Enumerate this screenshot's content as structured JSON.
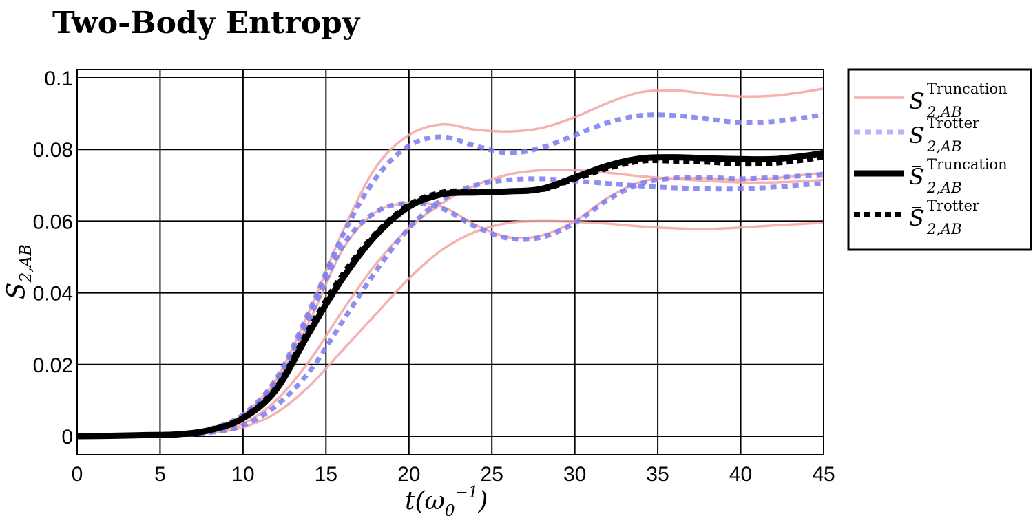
{
  "chart_data": {
    "type": "line",
    "title": "Two-Body Entropy",
    "xlabel": "t(ω0^-1)",
    "ylabel": "S2,AB",
    "xlim": [
      0,
      45
    ],
    "ylim": [
      0,
      0.1
    ],
    "xticks": [
      0,
      5,
      10,
      15,
      20,
      25,
      30,
      35,
      40,
      45
    ],
    "xtick_labels": [
      "0",
      "5",
      "10",
      "15",
      "20",
      "25",
      "30",
      "35",
      "40",
      "45"
    ],
    "yticks": [
      0,
      0.02,
      0.04,
      0.06,
      0.08,
      0.1
    ],
    "ytick_labels": [
      "0",
      "0.02",
      "0.04",
      "0.06",
      "0.08",
      "0.1"
    ],
    "grid": true,
    "legend_position": "outside-right",
    "legend": [
      {
        "base": "S",
        "bar": false,
        "sup": "Truncation",
        "sub": "2,AB",
        "style": "truncation"
      },
      {
        "base": "S",
        "bar": false,
        "sup": "Trotter",
        "sub": "2,AB",
        "style": "trotter"
      },
      {
        "base": "S",
        "bar": true,
        "sup": "Truncation",
        "sub": "2,AB",
        "style": "mean-truncation"
      },
      {
        "base": "S",
        "bar": true,
        "sup": "Trotter",
        "sub": "2,AB",
        "style": "mean-trotter"
      }
    ],
    "colors": {
      "truncation": "#f5a3a3",
      "trotter": "#7b7bf0",
      "mean": "#000000"
    },
    "x": [
      0,
      2,
      4,
      6,
      8,
      10,
      12,
      14,
      16,
      18,
      20,
      22,
      24,
      26,
      28,
      30,
      32,
      34,
      36,
      38,
      40,
      42,
      44,
      45
    ],
    "series": [
      {
        "group": "truncation",
        "values": [
          0,
          0.0001,
          0.0003,
          0.0006,
          0.002,
          0.006,
          0.016,
          0.035,
          0.057,
          0.075,
          0.084,
          0.087,
          0.0855,
          0.085,
          0.086,
          0.089,
          0.093,
          0.096,
          0.0965,
          0.0955,
          0.0948,
          0.095,
          0.0962,
          0.097
        ]
      },
      {
        "group": "truncation",
        "values": [
          0,
          0.0001,
          0.0003,
          0.0006,
          0.0018,
          0.0055,
          0.015,
          0.032,
          0.052,
          0.0625,
          0.065,
          0.064,
          0.059,
          0.0555,
          0.056,
          0.06,
          0.0665,
          0.071,
          0.072,
          0.072,
          0.0715,
          0.072,
          0.073,
          0.0735
        ]
      },
      {
        "group": "truncation",
        "values": [
          0,
          0.0001,
          0.0002,
          0.0004,
          0.0012,
          0.0035,
          0.01,
          0.021,
          0.035,
          0.048,
          0.058,
          0.065,
          0.07,
          0.073,
          0.0742,
          0.0742,
          0.0735,
          0.0725,
          0.0718,
          0.0712,
          0.0708,
          0.0708,
          0.0712,
          0.0715
        ]
      },
      {
        "group": "truncation",
        "values": [
          0,
          0.0001,
          0.0002,
          0.0003,
          0.0009,
          0.0025,
          0.0065,
          0.014,
          0.024,
          0.034,
          0.044,
          0.052,
          0.057,
          0.0595,
          0.06,
          0.0598,
          0.0593,
          0.0585,
          0.058,
          0.0578,
          0.0582,
          0.0588,
          0.0593,
          0.0596
        ]
      },
      {
        "group": "trotter",
        "values": [
          0,
          0.0001,
          0.0003,
          0.0006,
          0.002,
          0.006,
          0.016,
          0.035,
          0.056,
          0.072,
          0.081,
          0.0835,
          0.081,
          0.079,
          0.0805,
          0.084,
          0.0875,
          0.0895,
          0.0895,
          0.0885,
          0.0875,
          0.0878,
          0.089,
          0.0897
        ]
      },
      {
        "group": "trotter",
        "values": [
          0,
          0.0001,
          0.0003,
          0.0006,
          0.0018,
          0.0055,
          0.015,
          0.033,
          0.053,
          0.0625,
          0.065,
          0.0635,
          0.0585,
          0.0552,
          0.0555,
          0.0595,
          0.066,
          0.0705,
          0.072,
          0.0722,
          0.0718,
          0.0722,
          0.0727,
          0.073
        ]
      },
      {
        "group": "trotter",
        "values": [
          0,
          0.0001,
          0.0002,
          0.0004,
          0.001,
          0.003,
          0.0085,
          0.018,
          0.032,
          0.046,
          0.058,
          0.066,
          0.07,
          0.0715,
          0.0718,
          0.0712,
          0.0705,
          0.0698,
          0.0693,
          0.069,
          0.069,
          0.0695,
          0.0702,
          0.0705
        ]
      },
      {
        "group": "mean-truncation",
        "values": [
          0,
          0.0001,
          0.0003,
          0.0005,
          0.0017,
          0.005,
          0.013,
          0.029,
          0.044,
          0.056,
          0.064,
          0.0675,
          0.068,
          0.0683,
          0.069,
          0.0722,
          0.0755,
          0.0775,
          0.0778,
          0.0775,
          0.0773,
          0.0773,
          0.0783,
          0.079
        ]
      },
      {
        "group": "mean-trotter",
        "values": [
          0,
          0.0001,
          0.0003,
          0.0005,
          0.0017,
          0.0052,
          0.0135,
          0.03,
          0.045,
          0.0565,
          0.0645,
          0.068,
          0.0683,
          0.0683,
          0.0688,
          0.0718,
          0.0748,
          0.0768,
          0.0768,
          0.0765,
          0.076,
          0.0762,
          0.0772,
          0.078
        ]
      }
    ]
  }
}
